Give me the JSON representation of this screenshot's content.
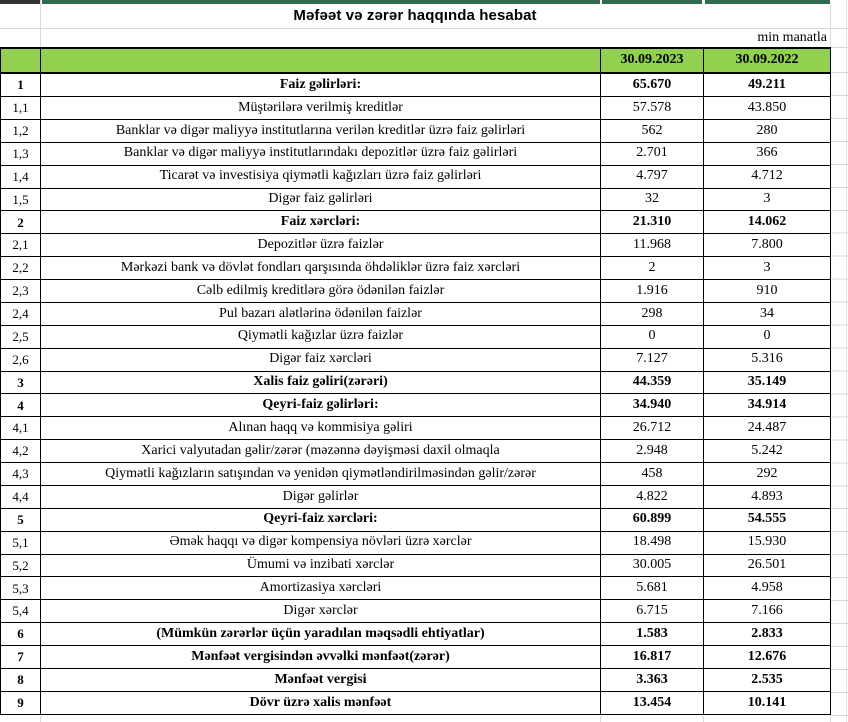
{
  "title": "Məfəət və zərər haqqında hesabat",
  "unit_note": "min manatla",
  "table": {
    "col_2023": "30.09.2023",
    "col_2022": "30.09.2022",
    "rows": [
      {
        "no": "1",
        "label": "Faiz gəlirləri:",
        "v2023": "65.670",
        "v2022": "49.211",
        "bold": true
      },
      {
        "no": "1,1",
        "label": "Müştərilərə verilmiş kreditlər",
        "v2023": "57.578",
        "v2022": "43.850",
        "bold": false
      },
      {
        "no": "1,2",
        "label": "Banklar və digər maliyyə institutlarına verilən kreditlər üzrə faiz gəlirləri",
        "v2023": "562",
        "v2022": "280",
        "bold": false
      },
      {
        "no": "1,3",
        "label": "Banklar və digər maliyyə institutlarındakı depozitlər üzrə faiz gəlirləri",
        "v2023": "2.701",
        "v2022": "366",
        "bold": false
      },
      {
        "no": "1,4",
        "label": "Ticarət və investisiya qiymətli kağızları üzrə faiz gəlirləri",
        "v2023": "4.797",
        "v2022": "4.712",
        "bold": false
      },
      {
        "no": "1,5",
        "label": "Digər faiz gəlirləri",
        "v2023": "32",
        "v2022": "3",
        "bold": false
      },
      {
        "no": "2",
        "label": "Faiz xərcləri:",
        "v2023": "21.310",
        "v2022": "14.062",
        "bold": true
      },
      {
        "no": "2,1",
        "label": "Depozitlər üzrə faizlər",
        "v2023": "11.968",
        "v2022": "7.800",
        "bold": false
      },
      {
        "no": "2,2",
        "label": "Mərkəzi bank və dövlət fondları qarşısında öhdəliklər üzrə faiz xərcləri",
        "v2023": "2",
        "v2022": "3",
        "bold": false
      },
      {
        "no": "2,3",
        "label": "Cəlb edilmiş kreditlərə görə ödənilən faizlər",
        "v2023": "1.916",
        "v2022": "910",
        "bold": false
      },
      {
        "no": "2,4",
        "label": "Pul bazarı alətlərinə ödənilən faizlər",
        "v2023": "298",
        "v2022": "34",
        "bold": false
      },
      {
        "no": "2,5",
        "label": "Qiymətli kağızlar üzrə faizlər",
        "v2023": "0",
        "v2022": "0",
        "bold": false
      },
      {
        "no": "2,6",
        "label": "Digər faiz xərcləri",
        "v2023": "7.127",
        "v2022": "5.316",
        "bold": false
      },
      {
        "no": "3",
        "label": "Xalis faiz gəliri(zərəri)",
        "v2023": "44.359",
        "v2022": "35.149",
        "bold": true
      },
      {
        "no": "4",
        "label": "Qeyri-faiz gəlirləri:",
        "v2023": "34.940",
        "v2022": "34.914",
        "bold": true
      },
      {
        "no": "4,1",
        "label": "Alınan haqq və kommisiya gəliri",
        "v2023": "26.712",
        "v2022": "24.487",
        "bold": false
      },
      {
        "no": "4,2",
        "label": "Xarici valyutadan gəlir/zərər (məzənnə dəyişməsi daxil olmaqla",
        "v2023": "2.948",
        "v2022": "5.242",
        "bold": false
      },
      {
        "no": "4,3",
        "label": "Qiymətli kağızların satışından və yenidən qiymətləndirilməsindən gəlir/zərər",
        "v2023": "458",
        "v2022": "292",
        "bold": false
      },
      {
        "no": "4,4",
        "label": "Digər gəlirlər",
        "v2023": "4.822",
        "v2022": "4.893",
        "bold": false
      },
      {
        "no": "5",
        "label": "Qeyri-faiz xərcləri:",
        "v2023": "60.899",
        "v2022": "54.555",
        "bold": true
      },
      {
        "no": "5,1",
        "label": "Əmək haqqı və digər kompensiya növləri üzrə xərclər",
        "v2023": "18.498",
        "v2022": "15.930",
        "bold": false
      },
      {
        "no": "5,2",
        "label": "Ümumi və inzibati xərclər",
        "v2023": "30.005",
        "v2022": "26.501",
        "bold": false
      },
      {
        "no": "5,3",
        "label": "Amortizasiya xərcləri",
        "v2023": "5.681",
        "v2022": "4.958",
        "bold": false
      },
      {
        "no": "5,4",
        "label": "Digər xərclər",
        "v2023": "6.715",
        "v2022": "7.166",
        "bold": false
      },
      {
        "no": "6",
        "label": "(Mümkün zərərlər üçün yaradılan məqsədli ehtiyatlar)",
        "v2023": "1.583",
        "v2022": "2.833",
        "bold": true
      },
      {
        "no": "7",
        "label": "Mənfəət vergisindən əvvəlki mənfəət(zərər)",
        "v2023": "16.817",
        "v2022": "12.676",
        "bold": true
      },
      {
        "no": "8",
        "label": "Mənfəət vergisi",
        "v2023": "3.363",
        "v2022": "2.535",
        "bold": true
      },
      {
        "no": "9",
        "label": "Dövr üzrə xalis mənfəət",
        "v2023": "13.454",
        "v2022": "10.141",
        "bold": true
      }
    ]
  },
  "colors": {
    "header_green": "#92D050",
    "top_strip_green": "#2E6B50",
    "top_strip_dark": "#2F3433",
    "table_border": "#000000",
    "gridline_gray": "#D9D9D9"
  }
}
